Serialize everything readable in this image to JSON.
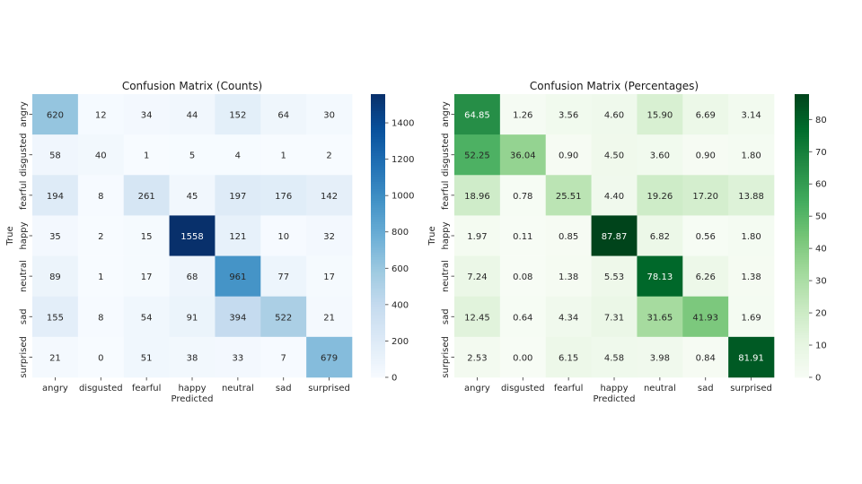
{
  "chart_data": [
    {
      "type": "heatmap",
      "title": "Confusion Matrix (Counts)",
      "xlabel": "Predicted",
      "ylabel": "True",
      "colormap": "Blues",
      "categories": [
        "angry",
        "disgusted",
        "fearful",
        "happy",
        "neutral",
        "sad",
        "surprised"
      ],
      "values": [
        [
          620,
          12,
          34,
          44,
          152,
          64,
          30
        ],
        [
          58,
          40,
          1,
          5,
          4,
          1,
          2
        ],
        [
          194,
          8,
          261,
          45,
          197,
          176,
          142
        ],
        [
          35,
          2,
          15,
          1558,
          121,
          10,
          32
        ],
        [
          89,
          1,
          17,
          68,
          961,
          77,
          17
        ],
        [
          155,
          8,
          54,
          91,
          394,
          522,
          21
        ],
        [
          21,
          0,
          51,
          38,
          33,
          7,
          679
        ]
      ],
      "value_format": "int",
      "vmin": 0,
      "vmax": 1558,
      "colorbar_ticks": [
        0,
        200,
        400,
        600,
        800,
        1000,
        1200,
        1400
      ],
      "colorbar_tick_labels": [
        "0",
        "200",
        "400",
        "600",
        "800",
        "1000",
        "1200",
        "1400"
      ]
    },
    {
      "type": "heatmap",
      "title": "Confusion Matrix (Percentages)",
      "xlabel": "Predicted",
      "ylabel": "True",
      "colormap": "Greens",
      "categories": [
        "angry",
        "disgusted",
        "fearful",
        "happy",
        "neutral",
        "sad",
        "surprised"
      ],
      "values": [
        [
          64.85,
          1.26,
          3.56,
          4.6,
          15.9,
          6.69,
          3.14
        ],
        [
          52.25,
          36.04,
          0.9,
          4.5,
          3.6,
          0.9,
          1.8
        ],
        [
          18.96,
          0.78,
          25.51,
          4.4,
          19.26,
          17.2,
          13.88
        ],
        [
          1.97,
          0.11,
          0.85,
          87.87,
          6.82,
          0.56,
          1.8
        ],
        [
          7.24,
          0.08,
          1.38,
          5.53,
          78.13,
          6.26,
          1.38
        ],
        [
          12.45,
          0.64,
          4.34,
          7.31,
          31.65,
          41.93,
          1.69
        ],
        [
          2.53,
          0.0,
          6.15,
          4.58,
          3.98,
          0.84,
          81.91
        ]
      ],
      "value_format": "2f",
      "vmin": 0,
      "vmax": 87.87,
      "colorbar_ticks": [
        0,
        10,
        20,
        30,
        40,
        50,
        60,
        70,
        80
      ],
      "colorbar_tick_labels": [
        "0",
        "10",
        "20",
        "30",
        "40",
        "50",
        "60",
        "70",
        "80"
      ]
    }
  ],
  "colors": {
    "blues_stops": [
      "#f7fbff",
      "#deebf7",
      "#c6dbef",
      "#9ecae1",
      "#6baed6",
      "#4292c6",
      "#2171b5",
      "#08519c",
      "#08306b"
    ],
    "greens_stops": [
      "#f7fcf5",
      "#e5f5e0",
      "#c7e9c0",
      "#a1d99b",
      "#74c476",
      "#41ab5d",
      "#238b45",
      "#006d2c",
      "#00441b"
    ],
    "text_dark": "#262626",
    "text_light": "#ffffff"
  }
}
